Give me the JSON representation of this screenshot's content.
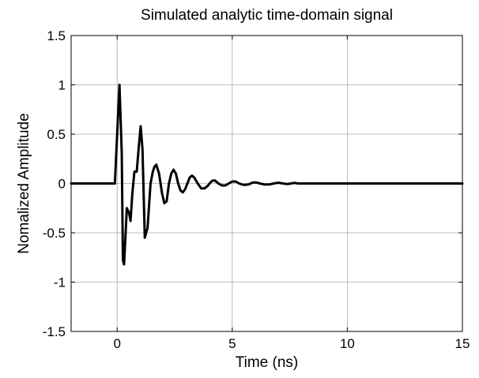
{
  "chart_data": {
    "type": "line",
    "title": "Simulated analytic time-domain signal",
    "xlabel": "Time (ns)",
    "ylabel": "Nomalized Amplitude",
    "xlim": [
      -2,
      15
    ],
    "ylim": [
      -1.5,
      1.5
    ],
    "grid": true,
    "legend": "none",
    "xticks": [
      0,
      5,
      10,
      15
    ],
    "xtick_labels": [
      "0",
      "5",
      "10",
      "15"
    ],
    "yticks": [
      -1.5,
      -1,
      -0.5,
      0,
      0.5,
      1,
      1.5
    ],
    "ytick_labels": [
      "-1.5",
      "-1",
      "-0.5",
      "0",
      "0.5",
      "1",
      "1.5"
    ],
    "line_color": "#000000",
    "series": [
      {
        "x": [
          -2,
          -0.1,
          0.0,
          0.1,
          0.2,
          0.25,
          0.3,
          0.42,
          0.52,
          0.58,
          0.66,
          0.75,
          0.85,
          0.95,
          1.02,
          1.1,
          1.2,
          1.32,
          1.45,
          1.55,
          1.62,
          1.7,
          1.82,
          1.95,
          2.05,
          2.15,
          2.25,
          2.35,
          2.45,
          2.55,
          2.65,
          2.75,
          2.85,
          2.95,
          3.05,
          3.15,
          3.25,
          3.35,
          3.5,
          3.65,
          3.8,
          3.95,
          4.05,
          4.15,
          4.25,
          4.4,
          4.55,
          4.7,
          4.85,
          5.0,
          5.15,
          5.3,
          5.5,
          5.7,
          5.9,
          6.05,
          6.2,
          6.4,
          6.6,
          6.8,
          7.0,
          7.2,
          7.4,
          7.55,
          7.7,
          7.85,
          8.0,
          8.2,
          8.5,
          15
        ],
        "y": [
          0,
          0,
          0.5,
          1.0,
          0.3,
          -0.78,
          -0.82,
          -0.25,
          -0.3,
          -0.38,
          -0.1,
          0.12,
          0.12,
          0.4,
          0.58,
          0.35,
          -0.55,
          -0.45,
          0.0,
          0.12,
          0.17,
          0.19,
          0.1,
          -0.1,
          -0.2,
          -0.18,
          0.0,
          0.1,
          0.14,
          0.1,
          0.0,
          -0.07,
          -0.09,
          -0.06,
          0.0,
          0.06,
          0.08,
          0.06,
          0.0,
          -0.05,
          -0.05,
          -0.02,
          0.01,
          0.03,
          0.03,
          0.0,
          -0.02,
          -0.02,
          0.0,
          0.02,
          0.02,
          0.0,
          -0.015,
          -0.01,
          0.01,
          0.01,
          0.0,
          -0.01,
          -0.01,
          0.0,
          0.008,
          0.0,
          -0.006,
          0.0,
          0.006,
          0.0,
          0.0,
          0.0,
          0.0,
          0.0
        ]
      }
    ]
  }
}
